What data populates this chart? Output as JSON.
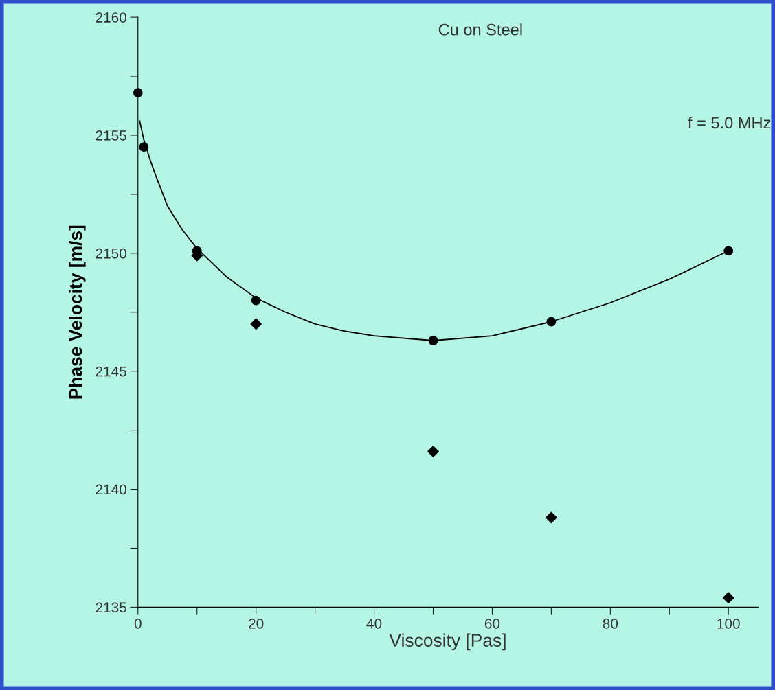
{
  "chart_data": {
    "type": "scatter",
    "xlabel": "Viscosity [Pas]",
    "ylabel": "Phase Velocity [m/s]",
    "annotations": [
      "Cu on Steel",
      "f = 5.0 MHz"
    ],
    "xlim": [
      0,
      105
    ],
    "ylim": [
      2135,
      2160
    ],
    "xticks": [
      0,
      {
        "value": 10,
        "label": null
      },
      20,
      {
        "value": 30,
        "label": null
      },
      40,
      {
        "value": 50,
        "label": null
      },
      60,
      {
        "value": 70,
        "label": null
      },
      80,
      {
        "value": 90,
        "label": null
      },
      100
    ],
    "yticks": [
      2135,
      {
        "value": 2137.5,
        "label": null
      },
      2140,
      {
        "value": 2142.5,
        "label": null
      },
      2145,
      {
        "value": 2147.5,
        "label": null
      },
      2150,
      {
        "value": 2152.5,
        "label": null
      },
      2155,
      {
        "value": 2157.5,
        "label": null
      },
      2160
    ],
    "grid": false,
    "legend": false,
    "series": [
      {
        "marker": "circle",
        "color": "#000000",
        "x": [
          0,
          1,
          10,
          20,
          50,
          70,
          100
        ],
        "values": [
          2156.8,
          2154.5,
          2150.1,
          2148.0,
          2146.3,
          2147.1,
          2150.1
        ]
      },
      {
        "type": "scatter",
        "marker": "diamond",
        "color": "#000000",
        "x": [
          10,
          20,
          50,
          70,
          100
        ],
        "values": [
          2149.9,
          2147.0,
          2141.6,
          2138.8,
          2135.4
        ]
      },
      {
        "type": "line",
        "marker": "none",
        "line_style": "solid",
        "color": "#000000",
        "x": [
          0.3,
          1,
          2,
          3,
          5,
          7.5,
          10,
          15,
          20,
          25,
          30,
          35,
          40,
          50,
          60,
          70,
          80,
          90,
          100
        ],
        "values": [
          2155.6,
          2154.8,
          2154.0,
          2153.3,
          2152.0,
          2151.0,
          2150.2,
          2149.0,
          2148.1,
          2147.5,
          2147.0,
          2146.7,
          2146.5,
          2146.3,
          2146.5,
          2147.1,
          2147.9,
          2148.9,
          2150.1
        ]
      }
    ]
  }
}
